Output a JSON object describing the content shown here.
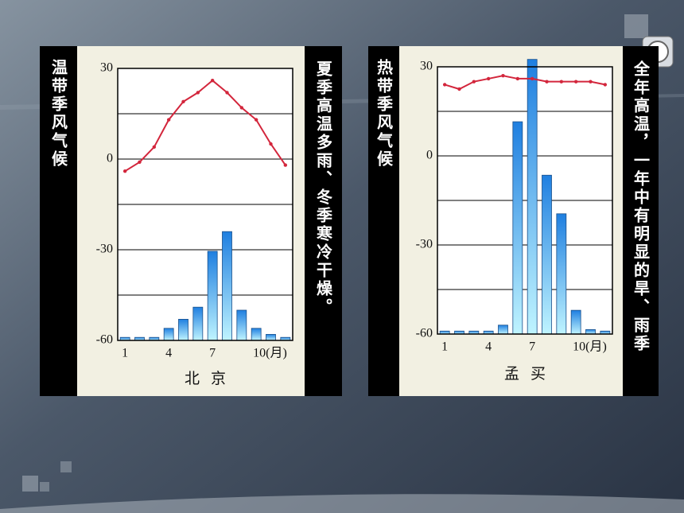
{
  "chart_data": [
    {
      "type": "combo",
      "side_title": "温带季风气候",
      "note": "夏季高温多雨、冬季寒冷干燥。",
      "xlabel": "北京",
      "categories": [
        "1",
        null,
        null,
        "4",
        null,
        null,
        "7",
        null,
        null,
        "10(月)",
        null,
        null
      ],
      "ylim": [
        -60,
        30
      ],
      "yticks": [
        30,
        {
          "value": 15,
          "label": null
        },
        0,
        {
          "value": -15,
          "label": null
        },
        -30,
        {
          "value": -45,
          "label": null
        },
        -60
      ],
      "grid": true,
      "bars": {
        "color": "#1f7fe0",
        "values": [
          -59,
          -59,
          -59,
          -56,
          -53,
          -49,
          -30.5,
          -24,
          -50,
          -56,
          -58,
          -59
        ]
      },
      "line": {
        "color": "#d3263c",
        "values": [
          -4,
          -1,
          4,
          13,
          19,
          22,
          26,
          22,
          17,
          13,
          5,
          -2
        ]
      }
    },
    {
      "type": "combo",
      "side_title": "热带季风气候",
      "note": "全年高温，一年中有明显的旱、雨季",
      "xlabel": "孟买",
      "categories": [
        "1",
        null,
        null,
        "4",
        null,
        null,
        "7",
        null,
        null,
        "10(月)",
        null,
        null
      ],
      "ylim": [
        -60,
        30
      ],
      "yticks": [
        30,
        {
          "value": 15,
          "label": null
        },
        0,
        {
          "value": -15,
          "label": null
        },
        -30,
        {
          "value": -45,
          "label": null
        },
        -60
      ],
      "grid": true,
      "bars": {
        "color": "#1f7fe0",
        "values": [
          -59,
          -59,
          -59,
          -59,
          -57,
          11.5,
          32.5,
          -6.5,
          -19.5,
          -52,
          -58.5,
          -59
        ]
      },
      "line": {
        "color": "#d3263c",
        "values": [
          24,
          22.5,
          25,
          26,
          27,
          26,
          26,
          25,
          25,
          25,
          25,
          24
        ]
      }
    }
  ]
}
